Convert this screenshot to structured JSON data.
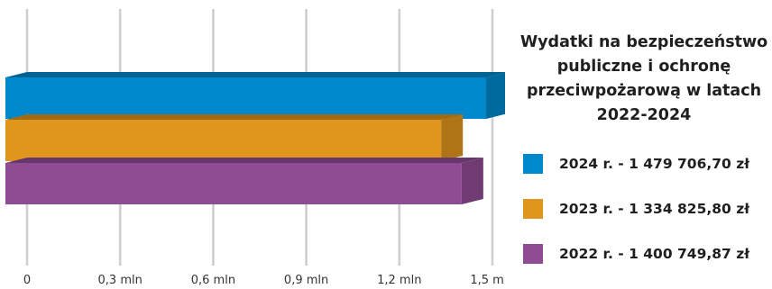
{
  "chart_data": {
    "type": "bar",
    "orientation": "horizontal",
    "style": "3d",
    "title": "Wydatki na bezpieczeństwo publiczne i ochronę przeciwpożarową w latach 2022-2024",
    "xlim": [
      0,
      1500000
    ],
    "x_ticks": [
      {
        "value": 0,
        "label": "0"
      },
      {
        "value": 300000,
        "label": "0,3 mln"
      },
      {
        "value": 600000,
        "label": "0,6 mln"
      },
      {
        "value": 900000,
        "label": "0,9 mln"
      },
      {
        "value": 1200000,
        "label": "1,2 mln"
      },
      {
        "value": 1500000,
        "label": "1,5 mln"
      }
    ],
    "grid": true,
    "legend_position": "right",
    "series": [
      {
        "name": "2024 r.",
        "value": 1479706.7,
        "color": "#0088cc",
        "legend_label": "2024 r. - 1 479 706,70 zł"
      },
      {
        "name": "2023 r.",
        "value": 1334825.8,
        "color": "#e0951c",
        "legend_label": "2023 r. - 1 334 825,80 zł"
      },
      {
        "name": "2022 r.",
        "value": 1400749.87,
        "color": "#8f4b93",
        "legend_label": "2022 r. - 1 400 749,87 zł"
      }
    ]
  }
}
